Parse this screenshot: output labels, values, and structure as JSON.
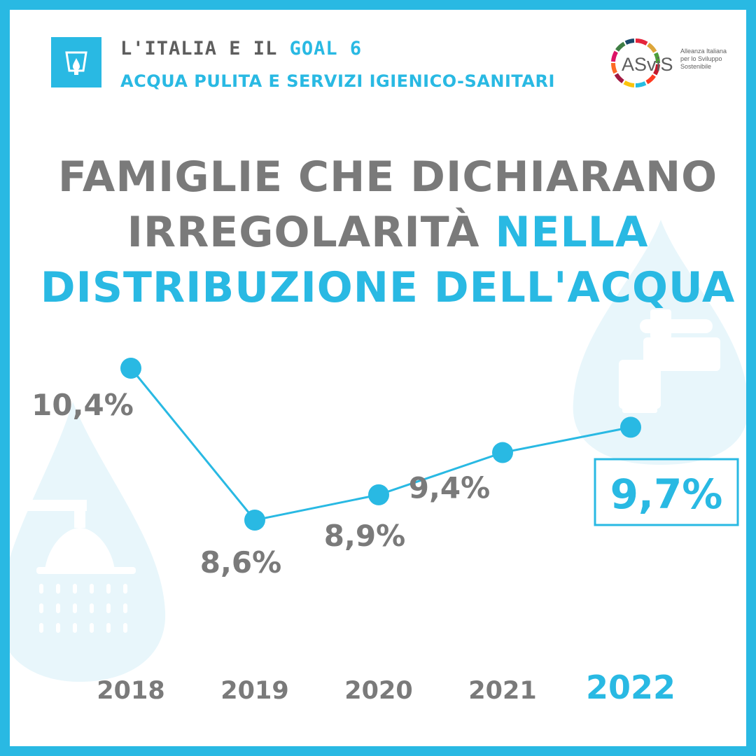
{
  "header": {
    "line1_prefix": "L'ITALIA E IL ",
    "line1_goal": "GOAL 6",
    "line2": "ACQUA PULITA E SERVIZI IGIENICO-SANITARI"
  },
  "logo": {
    "text": "ASviS",
    "tagline": [
      "Alleanza Italiana",
      "per lo Sviluppo",
      "Sostenibile"
    ]
  },
  "title": {
    "part1": "FAMIGLIE CHE DICHIARANO",
    "part2": "IRREGOLARITÀ ",
    "highlight1": "NELLA",
    "highlight2": "DISTRIBUZIONE DELL'ACQUA"
  },
  "colors": {
    "accent": "#29b9e3",
    "text_gray": "#7a7a7a",
    "header_gray": "#5e5e5e",
    "decor": "#e8f6fb"
  },
  "icons": [
    "water-goal-icon",
    "faucet-drop-icon",
    "shower-drop-icon"
  ],
  "chart_data": {
    "type": "line",
    "categories": [
      "2018",
      "2019",
      "2020",
      "2021",
      "2022"
    ],
    "values": [
      10.4,
      8.6,
      8.9,
      9.4,
      9.7
    ],
    "value_labels": [
      "10,4%",
      "8,6%",
      "8,9%",
      "9,4%",
      "9,7%"
    ],
    "highlighted_category": "2022",
    "grid": false,
    "legend": "none"
  }
}
